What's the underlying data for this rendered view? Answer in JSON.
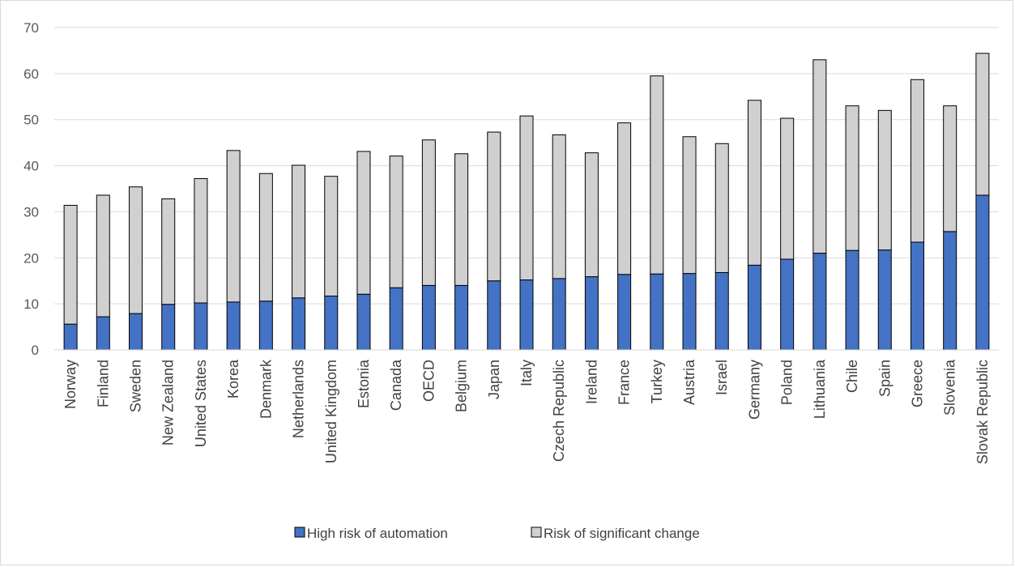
{
  "chart_data": {
    "type": "bar",
    "stacked": true,
    "categories": [
      "Norway",
      "Finland",
      "Sweden",
      "New Zealand",
      "United States",
      "Korea",
      "Denmark",
      "Netherlands",
      "United Kingdom",
      "Estonia",
      "Canada",
      "OECD",
      "Belgium",
      "Japan",
      "Italy",
      "Czech Republic",
      "Ireland",
      "France",
      "Turkey",
      "Austria",
      "Israel",
      "Germany",
      "Poland",
      "Lithuania",
      "Chile",
      "Spain",
      "Greece",
      "Slovenia",
      "Slovak Republic"
    ],
    "series": [
      {
        "name": "High risk of automation",
        "color": "#4472c4",
        "values": [
          5.6,
          7.2,
          7.9,
          9.9,
          10.2,
          10.4,
          10.6,
          11.3,
          11.7,
          12.1,
          13.5,
          14.0,
          14.0,
          15.0,
          15.2,
          15.5,
          15.9,
          16.4,
          16.5,
          16.6,
          16.8,
          18.4,
          19.7,
          21.0,
          21.6,
          21.7,
          23.4,
          25.7,
          33.6
        ]
      },
      {
        "name": "Risk of significant change",
        "color": "#d0d0d0",
        "values": [
          25.8,
          26.4,
          27.5,
          22.9,
          27.0,
          32.9,
          27.7,
          28.8,
          26.0,
          31.0,
          28.6,
          31.6,
          28.6,
          32.3,
          35.6,
          31.2,
          26.9,
          32.9,
          43.0,
          29.7,
          28.0,
          35.8,
          30.6,
          42.0,
          31.4,
          30.3,
          35.3,
          27.3,
          30.8
        ]
      }
    ],
    "ylim": [
      0,
      70
    ],
    "yticks": [
      0,
      10,
      20,
      30,
      40,
      50,
      60,
      70
    ],
    "grid": true,
    "legend_position": "bottom"
  }
}
